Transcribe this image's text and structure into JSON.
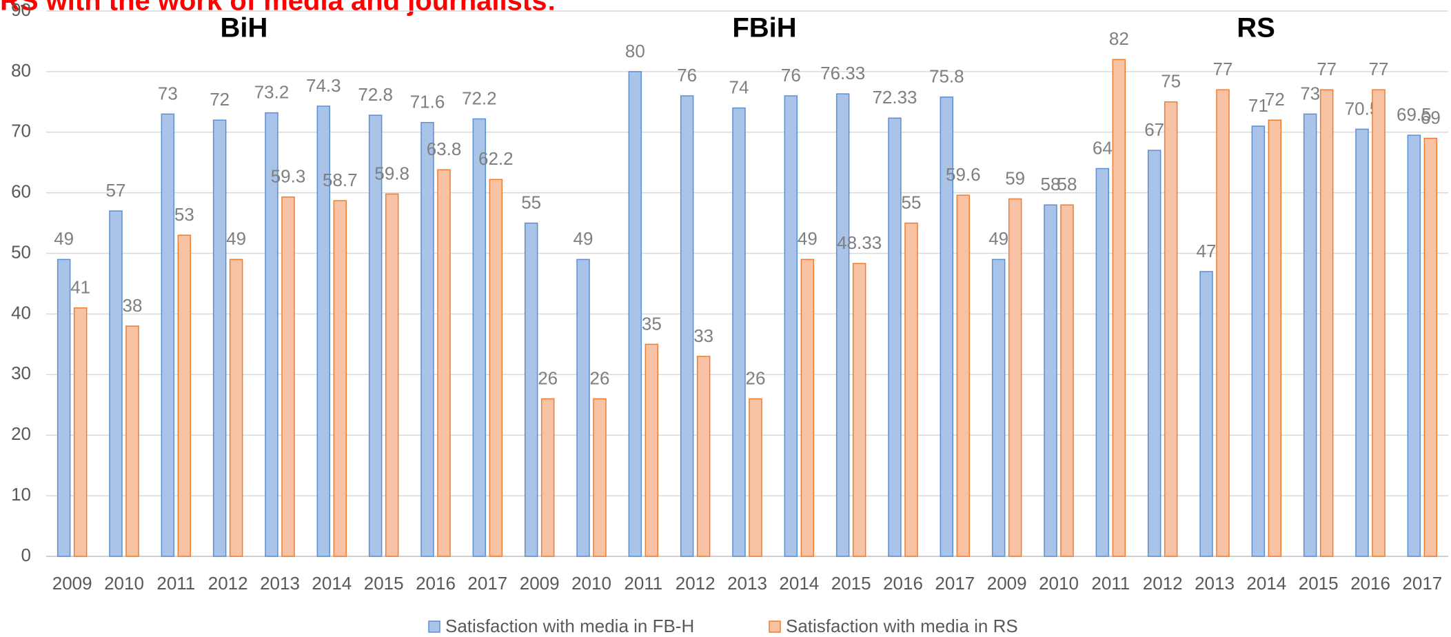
{
  "chart_data": {
    "type": "bar",
    "title": "RS with the work of media and journalists:",
    "annotations": [
      "BiH",
      "FBiH",
      "RS"
    ],
    "categories": [
      "2009",
      "2010",
      "2011",
      "2012",
      "2013",
      "2014",
      "2015",
      "2016",
      "2017",
      "2009",
      "2010",
      "2011",
      "2012",
      "2013",
      "2014",
      "2015",
      "2016",
      "2017",
      "2009",
      "2010",
      "2011",
      "2012",
      "2013",
      "2014",
      "2015",
      "2016",
      "2017"
    ],
    "series": [
      {
        "name": "Satisfaction with media in FB-H",
        "color": "#a9c4e8",
        "values": [
          49,
          57,
          73,
          72,
          73.2,
          74.3,
          72.8,
          71.6,
          72.2,
          55,
          49,
          80,
          76,
          74,
          76,
          76.33,
          72.33,
          75.8,
          49,
          58,
          64,
          67,
          47,
          71,
          73,
          70.5,
          69.5
        ]
      },
      {
        "name": "Satisfaction with media in RS",
        "color": "#f8c2a5",
        "values": [
          41,
          38,
          53,
          49,
          59.3,
          58.7,
          59.8,
          63.8,
          62.2,
          26,
          26,
          35,
          33,
          26,
          49,
          48.33,
          55,
          59.6,
          59,
          58,
          82,
          75,
          77,
          72,
          77,
          77,
          69
        ]
      }
    ],
    "ylim": [
      0,
      90
    ],
    "yticks": [
      0,
      10,
      20,
      30,
      40,
      50,
      60,
      70,
      80,
      90
    ],
    "grid": true,
    "legend": "bottom"
  }
}
